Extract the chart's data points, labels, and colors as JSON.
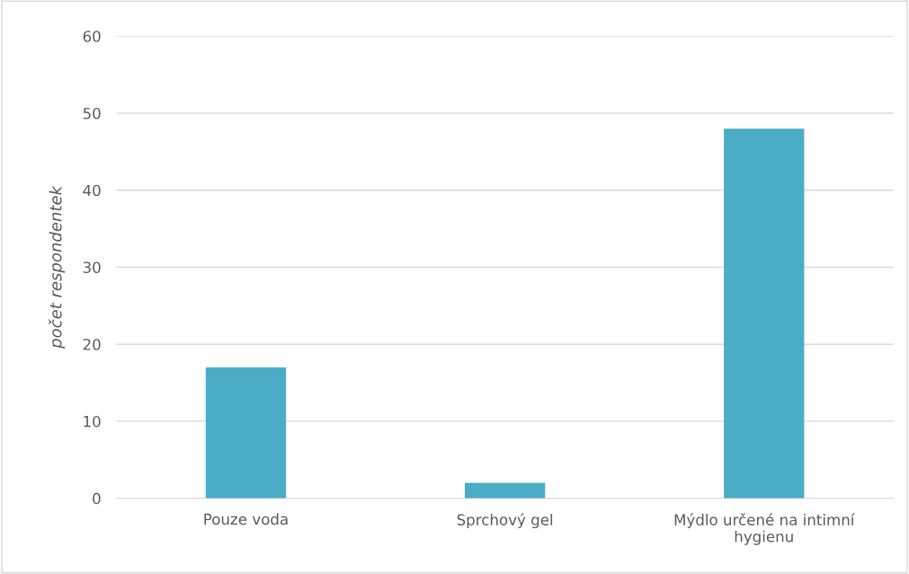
{
  "chart_data": {
    "type": "bar",
    "ylabel": "počet respondentek",
    "categories": [
      "Pouze voda",
      "Sprchový gel",
      "Mýdlo určené na intimní\nhygienu"
    ],
    "values": [
      17,
      2,
      48
    ],
    "color": "#4bacc6",
    "ylim": [
      0,
      60
    ],
    "yticks": [
      0,
      10,
      20,
      30,
      40,
      50,
      60
    ],
    "grid": "y"
  }
}
